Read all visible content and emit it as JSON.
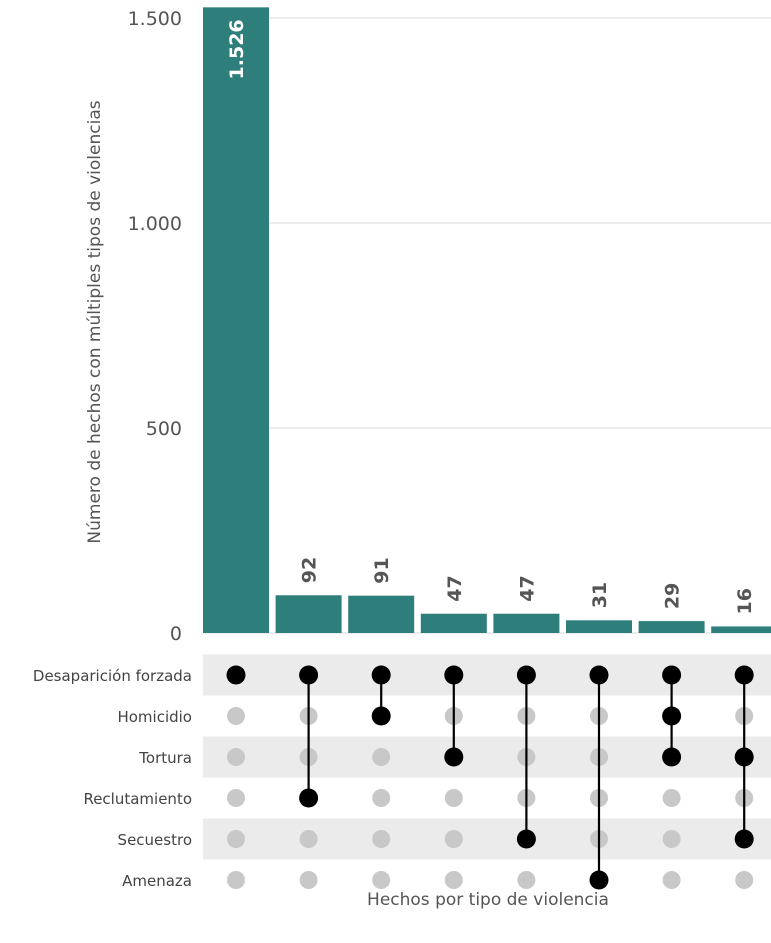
{
  "chart_data": {
    "type": "bar",
    "subtype": "upset",
    "ylabel": "Número de hechos con múltiples tipos de violencias",
    "xlabel": "Hechos por tipo de violencia",
    "ylim": [
      0,
      1500
    ],
    "yticks": [
      0,
      500,
      1000,
      1500
    ],
    "ytick_labels": [
      "0",
      "500",
      "1.000",
      "1.500"
    ],
    "grid": true,
    "sets": [
      "Desaparición forzada",
      "Homicidio",
      "Tortura",
      "Reclutamiento",
      "Secuestro",
      "Amenaza"
    ],
    "values": [
      1526,
      92,
      91,
      47,
      47,
      31,
      29,
      16
    ],
    "value_labels": [
      "1.526",
      "92",
      "91",
      "47",
      "47",
      "31",
      "29",
      "16"
    ],
    "intersections": [
      [
        "Desaparición forzada"
      ],
      [
        "Desaparición forzada",
        "Reclutamiento"
      ],
      [
        "Desaparición forzada",
        "Homicidio"
      ],
      [
        "Desaparición forzada",
        "Tortura"
      ],
      [
        "Desaparición forzada",
        "Secuestro"
      ],
      [
        "Desaparición forzada",
        "Amenaza"
      ],
      [
        "Desaparición forzada",
        "Homicidio",
        "Tortura"
      ],
      [
        "Desaparición forzada",
        "Tortura",
        "Secuestro"
      ]
    ],
    "colors": {
      "bar": "#2e7e7b",
      "dot_active": "#000000",
      "dot_inactive": "#c8c8c8",
      "row_shade": "#ebebeb",
      "grid": "#d9d9d9"
    }
  }
}
